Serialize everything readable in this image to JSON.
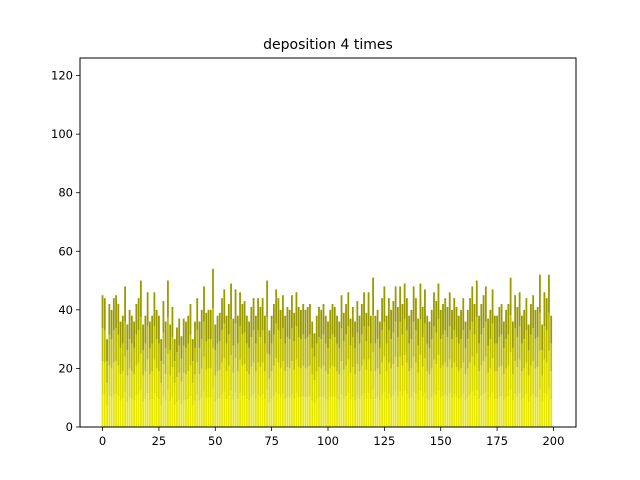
{
  "chart_data": {
    "type": "bar",
    "stacked": true,
    "title": "deposition 4 times",
    "xlabel": "",
    "ylabel": "",
    "xlim": [
      -10,
      210
    ],
    "ylim": [
      0,
      126
    ],
    "xticks": [
      0,
      25,
      50,
      75,
      100,
      125,
      150,
      175,
      200
    ],
    "yticks": [
      0,
      20,
      40,
      60,
      80,
      100,
      120
    ],
    "grid": false,
    "legend": "none",
    "bar_width": 0.8,
    "layer_colors": [
      "#e6e600",
      "#d9d900",
      "#bdbd00",
      "#999900"
    ],
    "layer_fractions": [
      0.25,
      0.5,
      0.75,
      1.0
    ],
    "x_count": 200,
    "totals": [
      45,
      44,
      30,
      42,
      40,
      44,
      45,
      42,
      36,
      38,
      48,
      35,
      40,
      38,
      36,
      42,
      44,
      50,
      35,
      38,
      46,
      36,
      38,
      46,
      40,
      38,
      30,
      43,
      36,
      50,
      35,
      41,
      30,
      34,
      37,
      31,
      37,
      36,
      38,
      42,
      30,
      36,
      44,
      36,
      40,
      48,
      39,
      40,
      40,
      54,
      35,
      38,
      39,
      44,
      47,
      38,
      42,
      49,
      37,
      47,
      38,
      46,
      42,
      43,
      38,
      36,
      41,
      44,
      38,
      44,
      41,
      44,
      38,
      50,
      33,
      38,
      42,
      47,
      44,
      40,
      45,
      38,
      41,
      40,
      45,
      39,
      46,
      41,
      40,
      42,
      40,
      41,
      42,
      36,
      32,
      38,
      41,
      40,
      42,
      38,
      36,
      40,
      42,
      41,
      38,
      36,
      45,
      39,
      42,
      46,
      37,
      41,
      36,
      43,
      38,
      42,
      46,
      39,
      46,
      38,
      51,
      38,
      40,
      36,
      44,
      48,
      38,
      44,
      40,
      43,
      48,
      41,
      48,
      42,
      49,
      44,
      38,
      40,
      48,
      44,
      37,
      49,
      41,
      47,
      38,
      36,
      40,
      46,
      43,
      49,
      40,
      42,
      44,
      41,
      46,
      40,
      44,
      41,
      38,
      40,
      44,
      36,
      40,
      44,
      48,
      42,
      50,
      38,
      42,
      45,
      48,
      37,
      40,
      47,
      38,
      38,
      41,
      42,
      36,
      40,
      42,
      51,
      36,
      45,
      41,
      46,
      38,
      40,
      44,
      35,
      42,
      45,
      40,
      41,
      52,
      35,
      46,
      44,
      52,
      38
    ]
  }
}
